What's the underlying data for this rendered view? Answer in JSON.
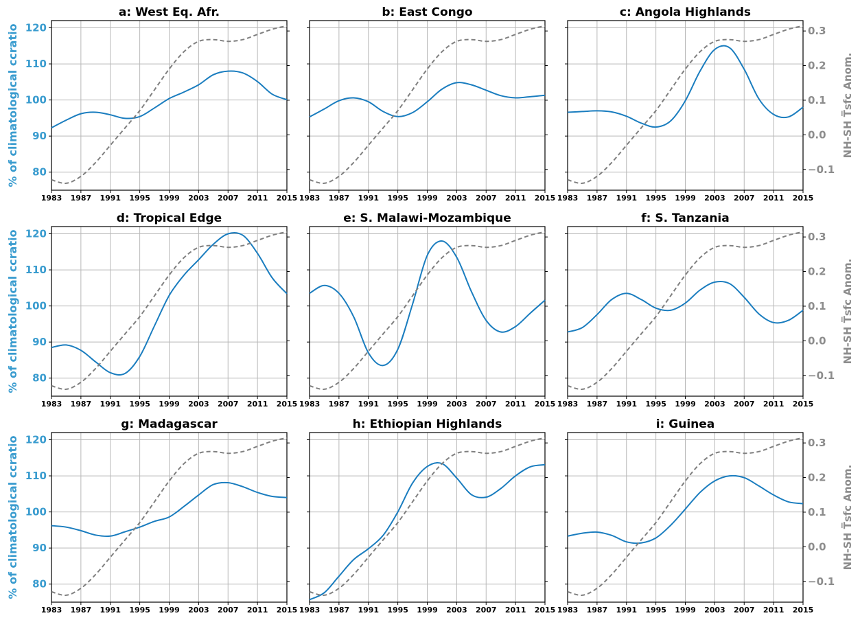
{
  "colors": {
    "precip": "#1a7dbf",
    "left_axis_label": "#3a9ccf",
    "temp": "#7f7f7f",
    "right_axis_label": "#8c8c8c",
    "grid": "#b8b8b8"
  },
  "axes": {
    "left_label": "% of climatological ccratio",
    "right_label": "NH-SH T̅sfc Anom.",
    "x_ticks": [
      "1983",
      "1987",
      "1991",
      "1995",
      "1999",
      "2003",
      "2007",
      "2011",
      "2015"
    ],
    "left_ticks": [
      "80",
      "90",
      "100",
      "110",
      "120"
    ],
    "right_ticks": [
      "−0.1",
      "0.0",
      "0.1",
      "0.2",
      "0.3"
    ]
  },
  "chart_data": [
    {
      "type": "line",
      "title": "a: West Eq. Afr.",
      "x": [
        1983,
        1985,
        1987,
        1989,
        1991,
        1993,
        1995,
        1997,
        1999,
        2001,
        2003,
        2005,
        2007,
        2009,
        2011,
        2013,
        2015
      ],
      "xlim": [
        1983,
        2015
      ],
      "ylim_left": [
        75,
        122
      ],
      "ylim_right": [
        -0.16,
        0.33
      ],
      "grid": true,
      "series": [
        {
          "axis": "left",
          "style": "solid",
          "values": [
            92.3,
            94.4,
            96.2,
            96.6,
            95.9,
            94.9,
            95.4,
            97.8,
            100.4,
            102.2,
            104.2,
            107,
            108,
            107.5,
            105.1,
            101.6,
            100.1
          ]
        },
        {
          "axis": "right",
          "style": "dashed",
          "values": [
            -0.13,
            -0.14,
            -0.12,
            -0.08,
            -0.03,
            0.02,
            0.07,
            0.13,
            0.19,
            0.24,
            0.27,
            0.275,
            0.27,
            0.275,
            0.29,
            0.305,
            0.315
          ]
        }
      ]
    },
    {
      "type": "line",
      "title": "b: East Congo",
      "x": [
        1983,
        1985,
        1987,
        1989,
        1991,
        1993,
        1995,
        1997,
        1999,
        2001,
        2003,
        2005,
        2007,
        2009,
        2011,
        2013,
        2015
      ],
      "xlim": [
        1983,
        2015
      ],
      "ylim_left": [
        75,
        122
      ],
      "ylim_right": [
        -0.16,
        0.33
      ],
      "grid": true,
      "series": [
        {
          "axis": "left",
          "style": "solid",
          "values": [
            95.3,
            97.5,
            99.8,
            100.6,
            99.5,
            96.8,
            95.4,
            96.5,
            99.5,
            103,
            104.8,
            104.2,
            102.7,
            101.2,
            100.6,
            100.9,
            101.3
          ]
        },
        {
          "axis": "right",
          "style": "dashed",
          "values": [
            -0.13,
            -0.14,
            -0.12,
            -0.08,
            -0.03,
            0.02,
            0.07,
            0.13,
            0.19,
            0.24,
            0.27,
            0.275,
            0.27,
            0.275,
            0.29,
            0.305,
            0.315
          ]
        }
      ]
    },
    {
      "type": "line",
      "title": "c: Angola Highlands",
      "x": [
        1983,
        1985,
        1987,
        1989,
        1991,
        1993,
        1995,
        1997,
        1999,
        2001,
        2003,
        2005,
        2007,
        2009,
        2011,
        2013,
        2015
      ],
      "xlim": [
        1983,
        2015
      ],
      "ylim_left": [
        75,
        122
      ],
      "ylim_right": [
        -0.16,
        0.33
      ],
      "grid": true,
      "series": [
        {
          "axis": "left",
          "style": "solid",
          "values": [
            96.6,
            96.8,
            97,
            96.7,
            95.5,
            93.6,
            92.5,
            94.2,
            99.8,
            108,
            114,
            114.5,
            108.5,
            100.3,
            96,
            95.3,
            98
          ]
        },
        {
          "axis": "right",
          "style": "dashed",
          "values": [
            -0.13,
            -0.14,
            -0.12,
            -0.08,
            -0.03,
            0.02,
            0.07,
            0.13,
            0.19,
            0.24,
            0.27,
            0.275,
            0.27,
            0.275,
            0.29,
            0.305,
            0.315
          ]
        }
      ]
    },
    {
      "type": "line",
      "title": "d: Tropical Edge",
      "x": [
        1983,
        1985,
        1987,
        1989,
        1991,
        1993,
        1995,
        1997,
        1999,
        2001,
        2003,
        2005,
        2007,
        2009,
        2011,
        2013,
        2015
      ],
      "xlim": [
        1983,
        2015
      ],
      "ylim_left": [
        75,
        122
      ],
      "ylim_right": [
        -0.16,
        0.33
      ],
      "grid": true,
      "series": [
        {
          "axis": "left",
          "style": "solid",
          "values": [
            88.5,
            89.2,
            87.7,
            84.5,
            81.5,
            81.3,
            86,
            94.5,
            102.9,
            108.5,
            112.8,
            117.1,
            120,
            119.6,
            114.6,
            107.8,
            103.4
          ]
        },
        {
          "axis": "right",
          "style": "dashed",
          "values": [
            -0.13,
            -0.14,
            -0.12,
            -0.08,
            -0.03,
            0.02,
            0.07,
            0.13,
            0.19,
            0.24,
            0.27,
            0.275,
            0.27,
            0.275,
            0.29,
            0.305,
            0.315
          ]
        }
      ]
    },
    {
      "type": "line",
      "title": "e: S. Malawi-Mozambique",
      "x": [
        1983,
        1985,
        1987,
        1989,
        1991,
        1993,
        1995,
        1997,
        1999,
        2001,
        2003,
        2005,
        2007,
        2009,
        2011,
        2013,
        2015
      ],
      "xlim": [
        1983,
        2015
      ],
      "ylim_left": [
        75,
        122
      ],
      "ylim_right": [
        -0.16,
        0.33
      ],
      "grid": true,
      "series": [
        {
          "axis": "left",
          "style": "solid",
          "values": [
            103.5,
            105.7,
            103.5,
            97,
            87,
            83.5,
            88,
            100.5,
            114,
            118,
            113.5,
            104,
            96,
            92.8,
            94.3,
            98,
            101.6
          ]
        },
        {
          "axis": "right",
          "style": "dashed",
          "values": [
            -0.13,
            -0.14,
            -0.12,
            -0.08,
            -0.03,
            0.02,
            0.07,
            0.13,
            0.19,
            0.24,
            0.27,
            0.275,
            0.27,
            0.275,
            0.29,
            0.305,
            0.315
          ]
        }
      ]
    },
    {
      "type": "line",
      "title": "f: S. Tanzania",
      "x": [
        1983,
        1985,
        1987,
        1989,
        1991,
        1993,
        1995,
        1997,
        1999,
        2001,
        2003,
        2005,
        2007,
        2009,
        2011,
        2013,
        2015
      ],
      "xlim": [
        1983,
        2015
      ],
      "ylim_left": [
        75,
        122
      ],
      "ylim_right": [
        -0.16,
        0.33
      ],
      "grid": true,
      "series": [
        {
          "axis": "left",
          "style": "solid",
          "values": [
            92.8,
            94,
            97.6,
            101.8,
            103.5,
            101.8,
            99.4,
            98.8,
            100.8,
            104.4,
            106.6,
            106.2,
            102.4,
            97.8,
            95.4,
            96,
            98.8
          ]
        },
        {
          "axis": "right",
          "style": "dashed",
          "values": [
            -0.13,
            -0.14,
            -0.12,
            -0.08,
            -0.03,
            0.02,
            0.07,
            0.13,
            0.19,
            0.24,
            0.27,
            0.275,
            0.27,
            0.275,
            0.29,
            0.305,
            0.315
          ]
        }
      ]
    },
    {
      "type": "line",
      "title": "g: Madagascar",
      "x": [
        1983,
        1985,
        1987,
        1989,
        1991,
        1993,
        1995,
        1997,
        1999,
        2001,
        2003,
        2005,
        2007,
        2009,
        2011,
        2013,
        2015
      ],
      "xlim": [
        1983,
        2015
      ],
      "ylim_left": [
        75,
        122
      ],
      "ylim_right": [
        -0.16,
        0.33
      ],
      "grid": true,
      "series": [
        {
          "axis": "left",
          "style": "solid",
          "values": [
            96.2,
            95.8,
            94.8,
            93.6,
            93.3,
            94.5,
            95.8,
            97.4,
            98.6,
            101.5,
            104.7,
            107.6,
            108.1,
            107,
            105.4,
            104.3,
            104
          ]
        },
        {
          "axis": "right",
          "style": "dashed",
          "values": [
            -0.13,
            -0.14,
            -0.12,
            -0.08,
            -0.03,
            0.02,
            0.07,
            0.13,
            0.19,
            0.24,
            0.27,
            0.275,
            0.27,
            0.275,
            0.29,
            0.305,
            0.315
          ]
        }
      ]
    },
    {
      "type": "line",
      "title": "h: Ethiopian Highlands",
      "x": [
        1983,
        1985,
        1987,
        1989,
        1991,
        1993,
        1995,
        1997,
        1999,
        2001,
        2003,
        2005,
        2007,
        2009,
        2011,
        2013,
        2015
      ],
      "xlim": [
        1983,
        2015
      ],
      "ylim_left": [
        75,
        122
      ],
      "ylim_right": [
        -0.16,
        0.33
      ],
      "grid": true,
      "series": [
        {
          "axis": "left",
          "style": "solid",
          "values": [
            75.7,
            77.6,
            82.2,
            86.8,
            89.8,
            93.5,
            100,
            108,
            112.6,
            113.4,
            109.4,
            104.8,
            104.1,
            106.5,
            110,
            112.5,
            113.1
          ]
        },
        {
          "axis": "right",
          "style": "dashed",
          "values": [
            -0.13,
            -0.14,
            -0.12,
            -0.08,
            -0.03,
            0.02,
            0.07,
            0.13,
            0.19,
            0.24,
            0.27,
            0.275,
            0.27,
            0.275,
            0.29,
            0.305,
            0.315
          ]
        }
      ]
    },
    {
      "type": "line",
      "title": "i: Guinea",
      "x": [
        1983,
        1985,
        1987,
        1989,
        1991,
        1993,
        1995,
        1997,
        1999,
        2001,
        2003,
        2005,
        2007,
        2009,
        2011,
        2013,
        2015
      ],
      "xlim": [
        1983,
        2015
      ],
      "ylim_left": [
        75,
        122
      ],
      "ylim_right": [
        -0.16,
        0.33
      ],
      "grid": true,
      "series": [
        {
          "axis": "left",
          "style": "solid",
          "values": [
            93.3,
            94.1,
            94.4,
            93.5,
            91.7,
            91.4,
            92.8,
            96.3,
            100.8,
            105.4,
            108.6,
            110,
            109.5,
            107.2,
            104.7,
            102.8,
            102.3
          ]
        },
        {
          "axis": "right",
          "style": "dashed",
          "values": [
            -0.13,
            -0.14,
            -0.12,
            -0.08,
            -0.03,
            0.02,
            0.07,
            0.13,
            0.19,
            0.24,
            0.27,
            0.275,
            0.27,
            0.275,
            0.29,
            0.305,
            0.315
          ]
        }
      ]
    }
  ]
}
